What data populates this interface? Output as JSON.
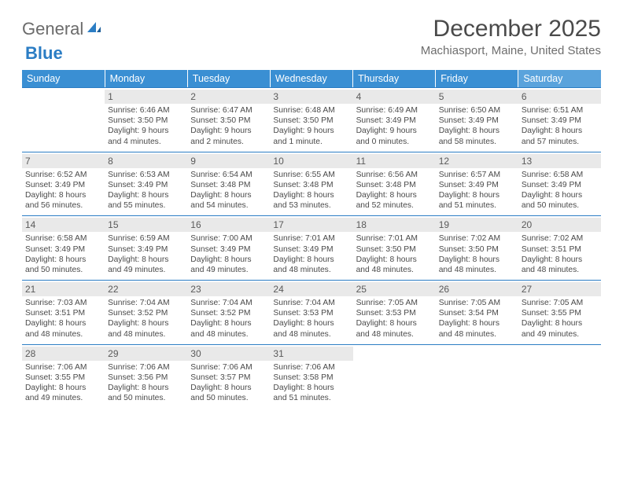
{
  "logo": {
    "text1": "General",
    "text2": "Blue"
  },
  "title": "December 2025",
  "location": "Machiasport, Maine, United States",
  "colors": {
    "header_bg": "#3a8fd3",
    "header_sat_bg": "#5aa3dc",
    "header_fg": "#ffffff",
    "rule": "#2b7dc4",
    "daynum_bg": "#e9e9e9",
    "text": "#4a4a4a"
  },
  "weekdays": [
    "Sunday",
    "Monday",
    "Tuesday",
    "Wednesday",
    "Thursday",
    "Friday",
    "Saturday"
  ],
  "weeks": [
    [
      null,
      {
        "n": "1",
        "sr": "6:46 AM",
        "ss": "3:50 PM",
        "dl": "9 hours and 4 minutes."
      },
      {
        "n": "2",
        "sr": "6:47 AM",
        "ss": "3:50 PM",
        "dl": "9 hours and 2 minutes."
      },
      {
        "n": "3",
        "sr": "6:48 AM",
        "ss": "3:50 PM",
        "dl": "9 hours and 1 minute."
      },
      {
        "n": "4",
        "sr": "6:49 AM",
        "ss": "3:49 PM",
        "dl": "9 hours and 0 minutes."
      },
      {
        "n": "5",
        "sr": "6:50 AM",
        "ss": "3:49 PM",
        "dl": "8 hours and 58 minutes."
      },
      {
        "n": "6",
        "sr": "6:51 AM",
        "ss": "3:49 PM",
        "dl": "8 hours and 57 minutes."
      }
    ],
    [
      {
        "n": "7",
        "sr": "6:52 AM",
        "ss": "3:49 PM",
        "dl": "8 hours and 56 minutes."
      },
      {
        "n": "8",
        "sr": "6:53 AM",
        "ss": "3:49 PM",
        "dl": "8 hours and 55 minutes."
      },
      {
        "n": "9",
        "sr": "6:54 AM",
        "ss": "3:48 PM",
        "dl": "8 hours and 54 minutes."
      },
      {
        "n": "10",
        "sr": "6:55 AM",
        "ss": "3:48 PM",
        "dl": "8 hours and 53 minutes."
      },
      {
        "n": "11",
        "sr": "6:56 AM",
        "ss": "3:48 PM",
        "dl": "8 hours and 52 minutes."
      },
      {
        "n": "12",
        "sr": "6:57 AM",
        "ss": "3:49 PM",
        "dl": "8 hours and 51 minutes."
      },
      {
        "n": "13",
        "sr": "6:58 AM",
        "ss": "3:49 PM",
        "dl": "8 hours and 50 minutes."
      }
    ],
    [
      {
        "n": "14",
        "sr": "6:58 AM",
        "ss": "3:49 PM",
        "dl": "8 hours and 50 minutes."
      },
      {
        "n": "15",
        "sr": "6:59 AM",
        "ss": "3:49 PM",
        "dl": "8 hours and 49 minutes."
      },
      {
        "n": "16",
        "sr": "7:00 AM",
        "ss": "3:49 PM",
        "dl": "8 hours and 49 minutes."
      },
      {
        "n": "17",
        "sr": "7:01 AM",
        "ss": "3:49 PM",
        "dl": "8 hours and 48 minutes."
      },
      {
        "n": "18",
        "sr": "7:01 AM",
        "ss": "3:50 PM",
        "dl": "8 hours and 48 minutes."
      },
      {
        "n": "19",
        "sr": "7:02 AM",
        "ss": "3:50 PM",
        "dl": "8 hours and 48 minutes."
      },
      {
        "n": "20",
        "sr": "7:02 AM",
        "ss": "3:51 PM",
        "dl": "8 hours and 48 minutes."
      }
    ],
    [
      {
        "n": "21",
        "sr": "7:03 AM",
        "ss": "3:51 PM",
        "dl": "8 hours and 48 minutes."
      },
      {
        "n": "22",
        "sr": "7:04 AM",
        "ss": "3:52 PM",
        "dl": "8 hours and 48 minutes."
      },
      {
        "n": "23",
        "sr": "7:04 AM",
        "ss": "3:52 PM",
        "dl": "8 hours and 48 minutes."
      },
      {
        "n": "24",
        "sr": "7:04 AM",
        "ss": "3:53 PM",
        "dl": "8 hours and 48 minutes."
      },
      {
        "n": "25",
        "sr": "7:05 AM",
        "ss": "3:53 PM",
        "dl": "8 hours and 48 minutes."
      },
      {
        "n": "26",
        "sr": "7:05 AM",
        "ss": "3:54 PM",
        "dl": "8 hours and 48 minutes."
      },
      {
        "n": "27",
        "sr": "7:05 AM",
        "ss": "3:55 PM",
        "dl": "8 hours and 49 minutes."
      }
    ],
    [
      {
        "n": "28",
        "sr": "7:06 AM",
        "ss": "3:55 PM",
        "dl": "8 hours and 49 minutes."
      },
      {
        "n": "29",
        "sr": "7:06 AM",
        "ss": "3:56 PM",
        "dl": "8 hours and 50 minutes."
      },
      {
        "n": "30",
        "sr": "7:06 AM",
        "ss": "3:57 PM",
        "dl": "8 hours and 50 minutes."
      },
      {
        "n": "31",
        "sr": "7:06 AM",
        "ss": "3:58 PM",
        "dl": "8 hours and 51 minutes."
      },
      null,
      null,
      null
    ]
  ]
}
